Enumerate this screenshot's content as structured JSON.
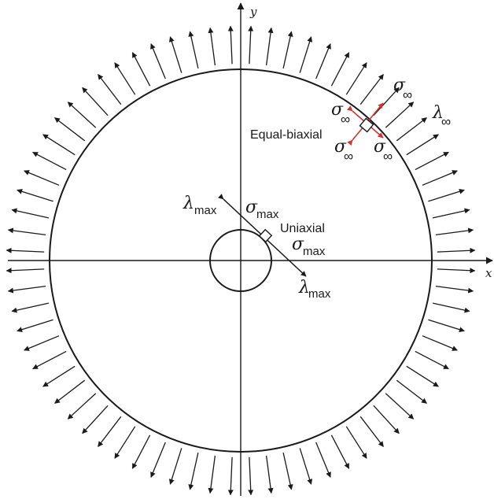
{
  "axes": {
    "x_label": "x",
    "y_label": "y"
  },
  "labels": {
    "equal_biaxial": "Equal-biaxial",
    "uniaxial": "Uniaxial",
    "sigma": "σ",
    "lambda": "λ",
    "sub_inf": "∞",
    "sub_max": "max"
  },
  "colors": {
    "ink": "#1a1a1a",
    "red_arrow": "#d0342c",
    "background": "#ffffff"
  },
  "outer_arrow_count": 72
}
